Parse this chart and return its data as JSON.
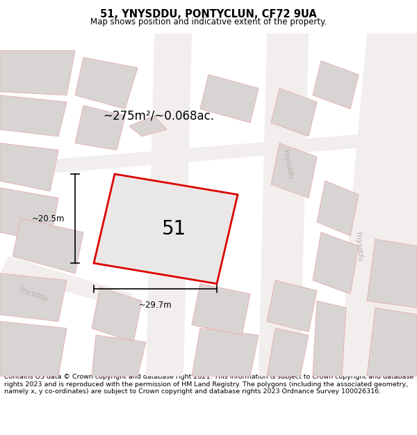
{
  "title": "51, YNYSDDU, PONTYCLUN, CF72 9UA",
  "subtitle": "Map shows position and indicative extent of the property.",
  "footer": "Contains OS data © Crown copyright and database right 2021. This information is subject to Crown copyright and database rights 2023 and is reproduced with the permission of HM Land Registry. The polygons (including the associated geometry, namely x, y co-ordinates) are subject to Crown copyright and database rights 2023 Ordnance Survey 100026316.",
  "area_label": "~275m²/~0.068ac.",
  "number_label": "51",
  "width_label": "~29.7m",
  "height_label": "~20.5m",
  "map_bg": "#eeebeb",
  "block_color": "#d8d4d4",
  "block_edge": "#e8b0b0",
  "road_color": "#f2eeee",
  "plot_outline_color": "#dd0000",
  "plot_fill_color": "#eae7e7",
  "road_label_color": "#c0adad",
  "street_label": "Ynysddu"
}
